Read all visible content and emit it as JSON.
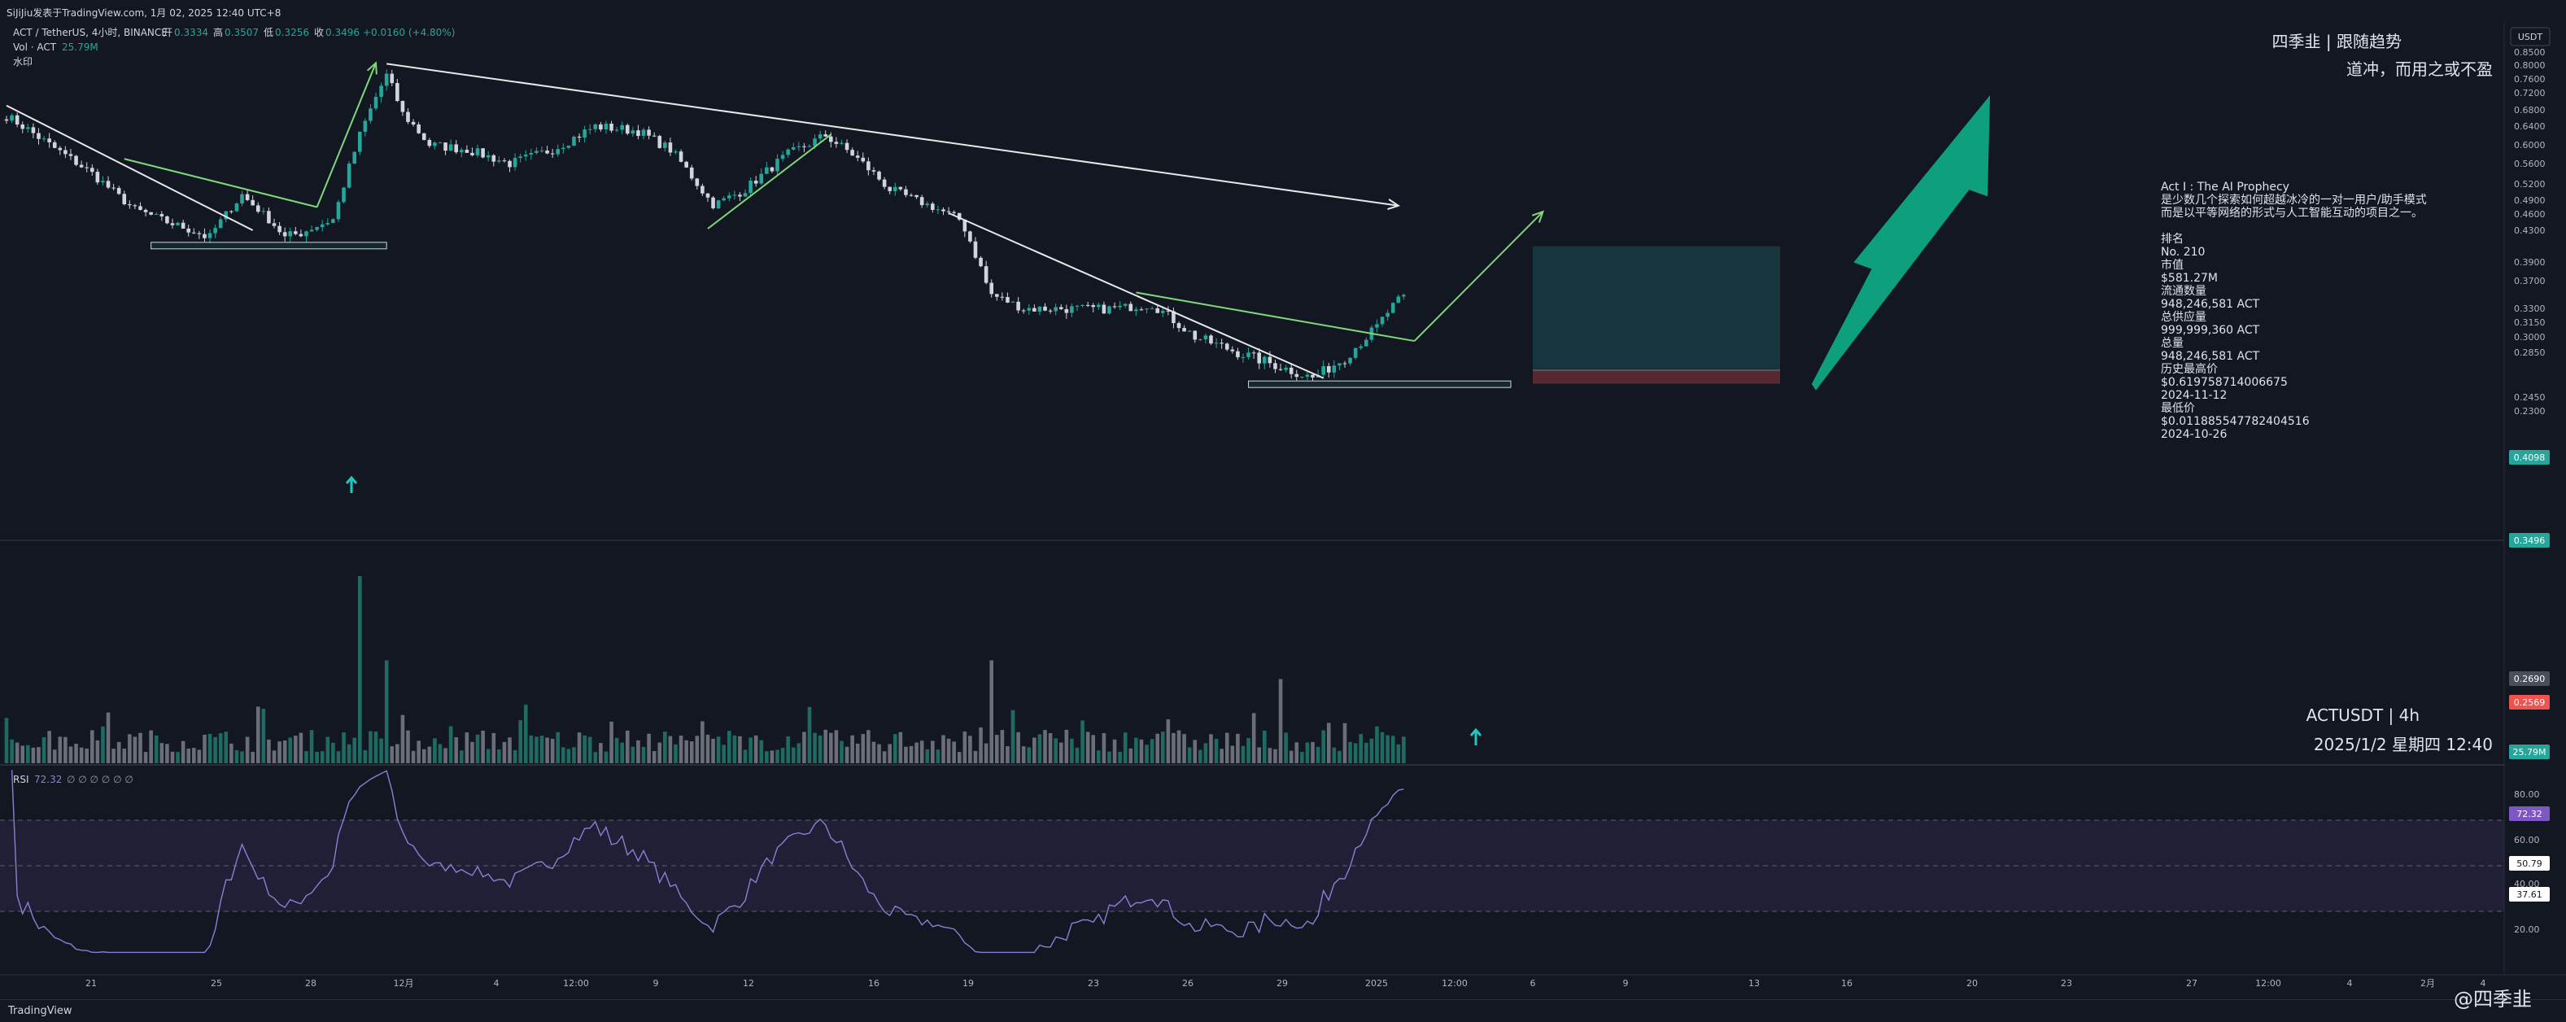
{
  "header": {
    "snapshot_text": "SiJiJiu发表于TradingView.com,  1月 02, 2025 12:40 UTC+8",
    "symbol_line": "ACT / TetherUS, 4小时, BINANCE",
    "ohlc": {
      "open_label": "开",
      "open": "0.3334",
      "high_label": "高",
      "high": "0.3507",
      "low_label": "低",
      "low": "0.3256",
      "close_label": "收",
      "close": "0.3496",
      "change": "+0.0160 (+4.80%)"
    },
    "vol_label": "Vol · ACT",
    "vol_value": "25.79M",
    "watermark_label": "水印",
    "currency": "USDT"
  },
  "brand": {
    "line1": "四季韭 | 跟随趋势",
    "line2": "道冲，而用之或不盈",
    "symbol_tf": "ACTUSDT | 4h",
    "datetime": "2025/1/2 星期四 12:40",
    "footer_logo": "TradingView",
    "footer_handle": "@四季韭"
  },
  "info_panel": {
    "lines": [
      "Act I : The AI Prophecy",
      "是少数几个探索如何超越冰冷的一对一用户/助手模式",
      "而是以平等网络的形式与人工智能互动的项目之一。",
      "",
      "排名",
      "No. 210",
      "市值",
      "$581.27M",
      "流通数量",
      "948,246,581 ACT",
      "总供应量",
      "999,999,360 ACT",
      "总量",
      "948,246,581 ACT",
      "历史最高价",
      "$0.619758714006675",
      "2024-11-12",
      "最低价",
      "$0.011885547782404516",
      "2024-10-26"
    ]
  },
  "rsi": {
    "label": "RSI",
    "value": "72.32",
    "params": "∅ ∅ ∅ ∅ ∅ ∅",
    "ticks": [
      "80.00",
      "60.00",
      "40.00",
      "20.00"
    ],
    "badges": [
      "72.32",
      "50.79",
      "37.61"
    ]
  },
  "price_axis": {
    "ticks": [
      "0.8500",
      "0.8000",
      "0.7600",
      "0.7200",
      "0.6800",
      "0.6400",
      "0.6000",
      "0.5600",
      "0.5200",
      "0.4900",
      "0.4600",
      "0.4300",
      "0.3900",
      "0.3700",
      "0.3300",
      "0.3150",
      "0.3000",
      "0.2850",
      "0.2450",
      "0.2300"
    ],
    "badges": [
      {
        "label": "0.4098",
        "color": "#26a69a"
      },
      {
        "label": "0.3496",
        "color": "#26a69a"
      },
      {
        "label": "0.2690",
        "color": "#4a4e59"
      },
      {
        "label": "0.2569",
        "color": "#ef5350"
      },
      {
        "label": "25.79M",
        "color": "#26a69a"
      }
    ]
  },
  "time_axis": {
    "ticks": [
      "21",
      "25",
      "28",
      "12月",
      "4",
      "12:00",
      "9",
      "12",
      "16",
      "19",
      "23",
      "26",
      "29",
      "2025",
      "12:00",
      "6",
      "9",
      "13",
      "16",
      "20",
      "23",
      "27",
      "12:00",
      "4",
      "2月",
      "4"
    ]
  },
  "colors": {
    "up": "#26a69a",
    "down": "#d1d4dc",
    "vol_up": "#1f6b63",
    "vol_down": "#6b6e78",
    "trend_green": "#7ed87a",
    "trend_white": "#e8e8e8",
    "arrow": "#0e9f7e",
    "target_zone": "rgba(38,166,154,0.22)",
    "stop_zone": "rgba(239,83,80,0.30)",
    "rsi_line": "#8a7fd6",
    "rsi_band": "rgba(126,87,194,0.12)"
  },
  "chart_data": {
    "type": "candlestick",
    "symbol": "ACTUSDT",
    "timeframe": "4h",
    "ylim": [
      0.23,
      0.85
    ],
    "x_range": [
      "2024-11-19",
      "2025-02-04"
    ],
    "anchors": [
      {
        "t": 0,
        "p": 0.665
      },
      {
        "t": 8,
        "p": 0.6
      },
      {
        "t": 16,
        "p": 0.54
      },
      {
        "t": 24,
        "p": 0.47
      },
      {
        "t": 30,
        "p": 0.445
      },
      {
        "t": 38,
        "p": 0.42
      },
      {
        "t": 44,
        "p": 0.5
      },
      {
        "t": 48,
        "p": 0.46
      },
      {
        "t": 52,
        "p": 0.42
      },
      {
        "t": 56,
        "p": 0.43
      },
      {
        "t": 61,
        "p": 0.45
      },
      {
        "t": 66,
        "p": 0.62
      },
      {
        "t": 71,
        "p": 0.77
      },
      {
        "t": 74,
        "p": 0.67
      },
      {
        "t": 79,
        "p": 0.6
      },
      {
        "t": 86,
        "p": 0.59
      },
      {
        "t": 94,
        "p": 0.56
      },
      {
        "t": 102,
        "p": 0.59
      },
      {
        "t": 110,
        "p": 0.64
      },
      {
        "t": 118,
        "p": 0.63
      },
      {
        "t": 124,
        "p": 0.59
      },
      {
        "t": 132,
        "p": 0.48
      },
      {
        "t": 138,
        "p": 0.51
      },
      {
        "t": 146,
        "p": 0.58
      },
      {
        "t": 153,
        "p": 0.62
      },
      {
        "t": 158,
        "p": 0.58
      },
      {
        "t": 165,
        "p": 0.51
      },
      {
        "t": 172,
        "p": 0.48
      },
      {
        "t": 178,
        "p": 0.45
      },
      {
        "t": 184,
        "p": 0.35
      },
      {
        "t": 190,
        "p": 0.33
      },
      {
        "t": 198,
        "p": 0.33
      },
      {
        "t": 206,
        "p": 0.33
      },
      {
        "t": 214,
        "p": 0.335
      },
      {
        "t": 222,
        "p": 0.3
      },
      {
        "t": 230,
        "p": 0.285
      },
      {
        "t": 238,
        "p": 0.272
      },
      {
        "t": 244,
        "p": 0.262
      },
      {
        "t": 250,
        "p": 0.28
      },
      {
        "t": 256,
        "p": 0.31
      },
      {
        "t": 261,
        "p": 0.3496
      }
    ],
    "volume_spikes": [
      {
        "t": 66,
        "v": 1.0
      },
      {
        "t": 71,
        "v": 0.55
      },
      {
        "t": 184,
        "v": 0.55
      },
      {
        "t": 238,
        "v": 0.45
      }
    ],
    "trend_lines": [
      {
        "color": "white",
        "from": {
          "t": 0,
          "p": 0.69
        },
        "to": {
          "t": 46,
          "p": 0.43
        }
      },
      {
        "color": "green",
        "from": {
          "t": 22,
          "p": 0.57
        },
        "to": {
          "t": 58,
          "p": 0.475
        }
      },
      {
        "color": "green",
        "from": {
          "t": 58,
          "p": 0.475
        },
        "to": {
          "t": 69,
          "p": 0.808
        }
      },
      {
        "color": "white",
        "from": {
          "t": 71,
          "p": 0.805
        },
        "to": {
          "t": 260,
          "p": 0.478
        }
      },
      {
        "color": "green",
        "from": {
          "t": 131,
          "p": 0.433
        },
        "to": {
          "t": 154,
          "p": 0.622
        }
      },
      {
        "color": "white",
        "from": {
          "t": 176,
          "p": 0.462
        },
        "to": {
          "t": 246,
          "p": 0.262
        }
      },
      {
        "color": "green",
        "from": {
          "t": 211,
          "p": 0.353
        },
        "to": {
          "t": 263,
          "p": 0.296
        }
      },
      {
        "color": "green",
        "from": {
          "t": 263,
          "p": 0.296
        },
        "to": {
          "t": 287,
          "p": 0.465
        }
      }
    ],
    "boxes": [
      {
        "from": {
          "t": 27,
          "p": 0.4148
        },
        "to": {
          "t": 71,
          "p": 0.4112
        }
      },
      {
        "from": {
          "t": 232,
          "p": 0.2594
        },
        "to": {
          "t": 281,
          "p": 0.2548
        }
      }
    ],
    "position": {
      "entry": 0.269,
      "target": 0.4098,
      "stop": 0.2569
    },
    "rsi_levels": [
      70,
      50,
      30
    ]
  }
}
